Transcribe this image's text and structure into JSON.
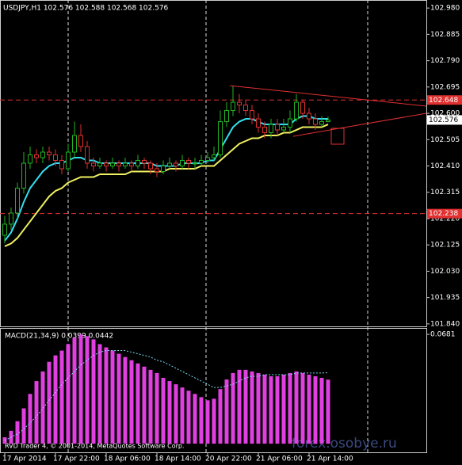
{
  "chart_data": {
    "type": "candlestick",
    "title": "USDJPY,H1  102.576 102.588 102.568 102.576",
    "categories": [
      "17 Apr 2014",
      null,
      null,
      null,
      null,
      null,
      null,
      null,
      "17 Apr 22:00",
      null,
      null,
      null,
      null,
      null,
      null,
      null,
      "18 Apr 06:00",
      null,
      null,
      null,
      null,
      null,
      null,
      null,
      "18 Apr 14:00",
      null,
      null,
      null,
      null,
      null,
      null,
      null,
      "20 Apr 22:00",
      null,
      null,
      null,
      null,
      null,
      null,
      null,
      "21 Apr 06:00",
      null,
      null,
      null,
      null,
      null,
      null,
      null,
      "21 Apr 14:00",
      null,
      null,
      null
    ],
    "xlim": [
      -0.75,
      66.5
    ],
    "open": [
      102.16,
      102.2,
      102.24,
      102.33,
      102.42,
      102.45,
      102.44,
      102.46,
      102.45,
      102.43,
      102.4,
      102.46,
      102.52,
      102.48,
      102.42,
      102.41,
      102.42,
      102.41,
      102.42,
      102.41,
      102.42,
      102.41,
      102.43,
      102.42,
      102.4,
      102.39,
      102.41,
      102.42,
      102.41,
      102.43,
      102.42,
      102.42,
      102.43,
      102.44,
      102.45,
      102.57,
      102.61,
      102.64,
      102.63,
      102.61,
      102.58,
      102.55,
      102.53,
      102.56,
      102.54,
      102.55,
      102.58,
      102.64,
      102.6,
      102.58,
      102.56,
      102.57
    ],
    "high": [
      102.23,
      102.26,
      102.35,
      102.46,
      102.48,
      102.47,
      102.48,
      102.48,
      102.47,
      102.45,
      102.49,
      102.57,
      102.56,
      102.5,
      102.44,
      102.44,
      102.43,
      102.44,
      102.43,
      102.44,
      102.43,
      102.45,
      102.44,
      102.43,
      102.42,
      102.43,
      102.44,
      102.43,
      102.45,
      102.44,
      102.44,
      102.45,
      102.46,
      102.48,
      102.61,
      102.64,
      102.7,
      102.67,
      102.65,
      102.63,
      102.6,
      102.57,
      102.58,
      102.58,
      102.58,
      102.61,
      102.67,
      102.65,
      102.62,
      102.6,
      102.59,
      102.588
    ],
    "low": [
      102.13,
      102.18,
      102.22,
      102.31,
      102.4,
      102.42,
      102.42,
      102.43,
      102.41,
      102.38,
      102.39,
      102.44,
      102.46,
      102.4,
      102.39,
      102.4,
      102.39,
      102.4,
      102.39,
      102.4,
      102.39,
      102.4,
      102.4,
      102.38,
      102.37,
      102.38,
      102.4,
      102.39,
      102.4,
      102.4,
      102.4,
      102.41,
      102.42,
      102.43,
      102.44,
      102.55,
      102.59,
      102.6,
      102.59,
      102.56,
      102.53,
      102.51,
      102.51,
      102.52,
      102.53,
      102.53,
      102.57,
      102.58,
      102.56,
      102.54,
      102.55,
      102.568
    ],
    "close": [
      102.2,
      102.24,
      102.33,
      102.42,
      102.45,
      102.44,
      102.46,
      102.45,
      102.43,
      102.4,
      102.46,
      102.52,
      102.48,
      102.42,
      102.41,
      102.42,
      102.41,
      102.42,
      102.41,
      102.42,
      102.41,
      102.43,
      102.42,
      102.4,
      102.39,
      102.41,
      102.42,
      102.41,
      102.43,
      102.42,
      102.42,
      102.43,
      102.44,
      102.45,
      102.57,
      102.61,
      102.64,
      102.63,
      102.61,
      102.58,
      102.55,
      102.53,
      102.56,
      102.54,
      102.55,
      102.58,
      102.64,
      102.6,
      102.58,
      102.56,
      102.57,
      102.576
    ],
    "bull_color": "#22b422",
    "bear_color": "#e03030",
    "series": [
      {
        "color": "#33e0f0",
        "values": [
          102.14,
          102.17,
          102.22,
          102.28,
          102.33,
          102.36,
          102.39,
          102.41,
          102.42,
          102.42,
          102.43,
          102.44,
          102.44,
          102.43,
          102.43,
          102.42,
          102.42,
          102.42,
          102.42,
          102.42,
          102.42,
          102.42,
          102.42,
          102.42,
          102.41,
          102.41,
          102.41,
          102.41,
          102.42,
          102.42,
          102.42,
          102.42,
          102.43,
          102.43,
          102.47,
          102.51,
          102.55,
          102.57,
          102.58,
          102.58,
          102.57,
          102.56,
          102.56,
          102.56,
          102.56,
          102.56,
          102.58,
          102.59,
          102.59,
          102.58,
          102.58,
          102.58
        ]
      },
      {
        "color": "#f0f060",
        "values": [
          102.12,
          102.13,
          102.15,
          102.18,
          102.21,
          102.24,
          102.27,
          102.3,
          102.32,
          102.33,
          102.35,
          102.36,
          102.37,
          102.37,
          102.37,
          102.38,
          102.38,
          102.38,
          102.38,
          102.38,
          102.39,
          102.39,
          102.39,
          102.39,
          102.39,
          102.39,
          102.4,
          102.4,
          102.4,
          102.4,
          102.4,
          102.41,
          102.41,
          102.41,
          102.43,
          102.45,
          102.47,
          102.49,
          102.5,
          102.51,
          102.51,
          102.52,
          102.52,
          102.52,
          102.53,
          102.53,
          102.54,
          102.55,
          102.55,
          102.55,
          102.55,
          102.56
        ]
      }
    ],
    "ylim": [
      101.831,
      103.009
    ],
    "yticks": [
      {
        "value": 102.98,
        "label": "102.980"
      },
      102.885,
      {
        "value": 102.79,
        "label": "102.790"
      },
      102.695,
      {
        "value": 102.6,
        "label": "102.600"
      },
      102.505,
      {
        "value": 102.41,
        "label": "102.410"
      },
      102.315,
      {
        "value": 102.22,
        "label": "102.220"
      },
      102.125,
      {
        "value": 102.03,
        "label": "102.030"
      },
      101.935,
      {
        "value": 101.84,
        "label": "101.840"
      }
    ],
    "levels": [
      {
        "value": 102.648,
        "color": "#e03030"
      },
      {
        "value": 102.238,
        "color": "#e03030"
      }
    ],
    "trendlines": [
      {
        "from": [
          35.5,
          102.7
        ],
        "to": [
          66.5,
          102.626
        ],
        "color": "#e03030"
      },
      {
        "from": [
          45.5,
          102.517
        ],
        "to": [
          66.5,
          102.6
        ],
        "color": "#e03030"
      }
    ],
    "macd": {
      "title": "MACD(21,34,9) 0.0399 0.0442",
      "ylim": [
        -0.0049,
        0.0716
      ],
      "yticks": [
        0.0681
      ],
      "histogram": {
        "color": "#e040e0",
        "values": [
          0.004,
          0.008,
          0.014,
          0.022,
          0.031,
          0.039,
          0.045,
          0.051,
          0.055,
          0.058,
          0.062,
          0.066,
          0.068,
          0.067,
          0.065,
          0.062,
          0.06,
          0.058,
          0.056,
          0.054,
          0.052,
          0.05,
          0.048,
          0.046,
          0.044,
          0.041,
          0.039,
          0.037,
          0.035,
          0.033,
          0.031,
          0.029,
          0.027,
          0.028,
          0.034,
          0.04,
          0.044,
          0.046,
          0.046,
          0.045,
          0.044,
          0.043,
          0.042,
          0.042,
          0.043,
          0.044,
          0.045,
          0.044,
          0.043,
          0.042,
          0.041,
          0.0399
        ]
      },
      "signal": {
        "color": "#7fd8f0",
        "values": [
          0.002,
          0.004,
          0.006,
          0.009,
          0.013,
          0.017,
          0.022,
          0.027,
          0.032,
          0.037,
          0.041,
          0.045,
          0.049,
          0.052,
          0.055,
          0.057,
          0.058,
          0.058,
          0.058,
          0.058,
          0.057,
          0.056,
          0.055,
          0.054,
          0.052,
          0.051,
          0.049,
          0.047,
          0.045,
          0.043,
          0.041,
          0.039,
          0.037,
          0.035,
          0.035,
          0.036,
          0.037,
          0.039,
          0.041,
          0.042,
          0.042,
          0.043,
          0.043,
          0.043,
          0.043,
          0.043,
          0.044,
          0.044,
          0.044,
          0.044,
          0.044,
          0.0442
        ]
      }
    },
    "footer": "RVD Trader 4, © 2001-2014, MetaQuotes Software Corp.",
    "watermark": "forex.osobye.ru"
  }
}
